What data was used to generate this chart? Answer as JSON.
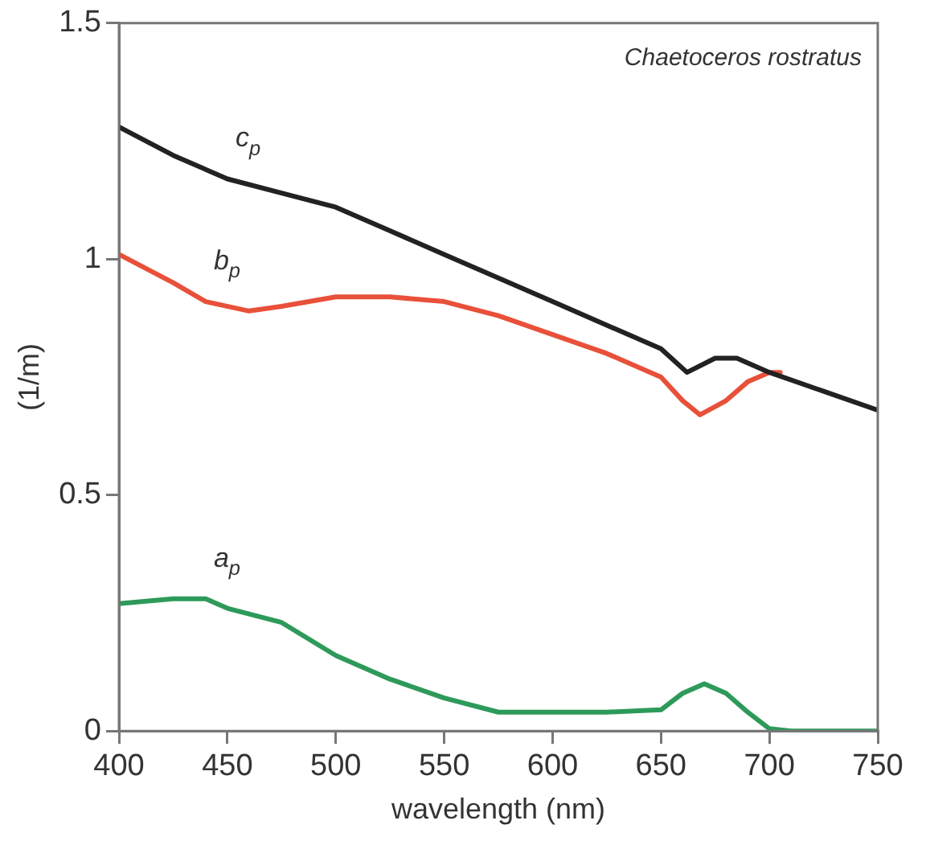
{
  "chart_data": {
    "type": "line",
    "xlabel": "wavelength (nm)",
    "ylabel": "(1/m)",
    "annotations": [
      "Chaetoceros rostratus"
    ],
    "xlim": [
      400,
      750
    ],
    "xticks": [
      400,
      450,
      500,
      550,
      600,
      650,
      700,
      750
    ],
    "ylim": [
      0,
      1.5
    ],
    "yticks": [
      0,
      0.5,
      1,
      1.5
    ],
    "grid": false,
    "legend": false,
    "marker": "none",
    "line_style": "solid",
    "series": [
      {
        "name": "c$_{p}$",
        "color": "#222222",
        "x": [
          400,
          425,
          450,
          475,
          500,
          525,
          550,
          575,
          600,
          625,
          650,
          662,
          675,
          685,
          700,
          725,
          750
        ],
        "values": [
          1.28,
          1.22,
          1.17,
          1.14,
          1.11,
          1.06,
          1.01,
          0.96,
          0.91,
          0.86,
          0.81,
          0.76,
          0.79,
          0.79,
          0.76,
          0.72,
          0.68
        ]
      },
      {
        "name": "b$_{p}$",
        "color": "#e8503a",
        "x": [
          400,
          425,
          440,
          460,
          475,
          500,
          525,
          550,
          575,
          600,
          625,
          650,
          660,
          668,
          680,
          690,
          700,
          705
        ],
        "values": [
          1.01,
          0.95,
          0.91,
          0.89,
          0.9,
          0.92,
          0.92,
          0.91,
          0.88,
          0.84,
          0.8,
          0.75,
          0.7,
          0.67,
          0.7,
          0.74,
          0.76,
          0.76
        ]
      },
      {
        "name": "a$_{p}$",
        "color": "#2e9a5a",
        "x": [
          400,
          425,
          440,
          450,
          475,
          500,
          525,
          550,
          575,
          600,
          625,
          650,
          660,
          670,
          680,
          690,
          700,
          710,
          750
        ],
        "values": [
          0.27,
          0.28,
          0.28,
          0.26,
          0.23,
          0.16,
          0.11,
          0.07,
          0.04,
          0.04,
          0.04,
          0.045,
          0.08,
          0.1,
          0.08,
          0.04,
          0.005,
          0,
          0
        ]
      }
    ]
  }
}
